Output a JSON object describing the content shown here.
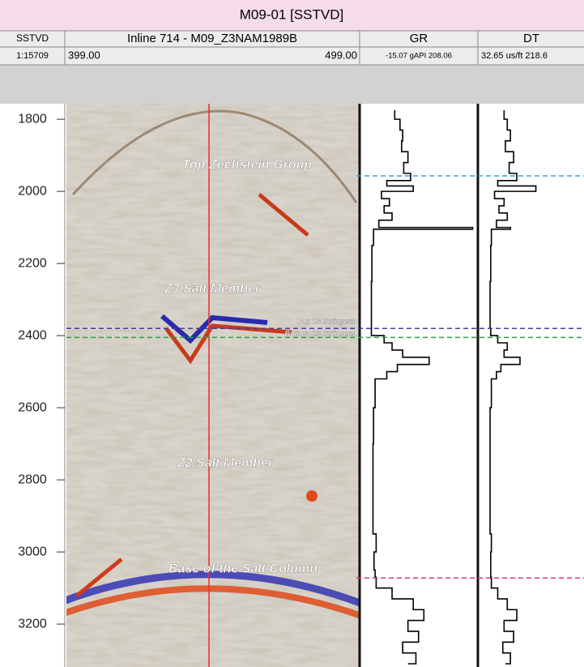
{
  "chart_data": {
    "type": "log",
    "title": "M09-01 [SSTVD]",
    "depth_header": "SSTVD",
    "scale": "1:15709",
    "seismic_header": "Inline 714 - M09_Z3NAM1989B",
    "seismic_min": "399.00",
    "seismic_max": "499.00",
    "gr_header": "GR",
    "gr_range": "-15.07 gAPI 208.06",
    "dt_header": "DT",
    "dt_range": "32.65 us/ft 218.6",
    "ylim": [
      1757,
      3319
    ],
    "yticks": [
      1800,
      2000,
      2200,
      2400,
      2600,
      2800,
      3000,
      3200
    ],
    "grlim": [
      -15.07,
      208.06
    ],
    "dtlim": [
      32.65,
      218.6
    ],
    "tops": [
      {
        "name": "Top Zechstein Group",
        "depth": 1957,
        "color": "#2aa8d0"
      },
      {
        "name": "Top Z3 Stringers",
        "depth": 2380,
        "color": "#4a3aa0"
      },
      {
        "name": "Bottom Z3 Stringers",
        "depth": 2405,
        "color": "#2fa04a"
      },
      {
        "name": "Base of the Salt Column",
        "depth": 3072,
        "color": "#e0307a"
      }
    ],
    "annotations": [
      "Z3 Salt Member",
      "Z2 Salt Member"
    ],
    "depths": [
      1775,
      1800,
      1830,
      1860,
      1890,
      1920,
      1950,
      1970,
      1985,
      2000,
      2020,
      2040,
      2060,
      2080,
      2100,
      2105,
      2150,
      2250,
      2350,
      2380,
      2400,
      2420,
      2440,
      2460,
      2480,
      2500,
      2520,
      2600,
      2700,
      2800,
      2900,
      2950,
      3000,
      3050,
      3070,
      3100,
      3130,
      3160,
      3190,
      3220,
      3250,
      3280,
      3310
    ],
    "gr": [
      45,
      55,
      60,
      58,
      70,
      62,
      75,
      30,
      80,
      20,
      35,
      25,
      40,
      15,
      192,
      5,
      2,
      1,
      1,
      1,
      25,
      40,
      60,
      110,
      50,
      30,
      8,
      5,
      4,
      4,
      4,
      10,
      6,
      8,
      10,
      40,
      80,
      100,
      70,
      90,
      60,
      85,
      70
    ],
    "dt": [
      70,
      75,
      80,
      72,
      85,
      78,
      90,
      60,
      120,
      55,
      70,
      62,
      75,
      58,
      80,
      50,
      49,
      48,
      48,
      49,
      60,
      75,
      70,
      95,
      65,
      58,
      50,
      48,
      48,
      48,
      48,
      50,
      49,
      49,
      50,
      60,
      75,
      90,
      70,
      85,
      68,
      80,
      72
    ]
  }
}
